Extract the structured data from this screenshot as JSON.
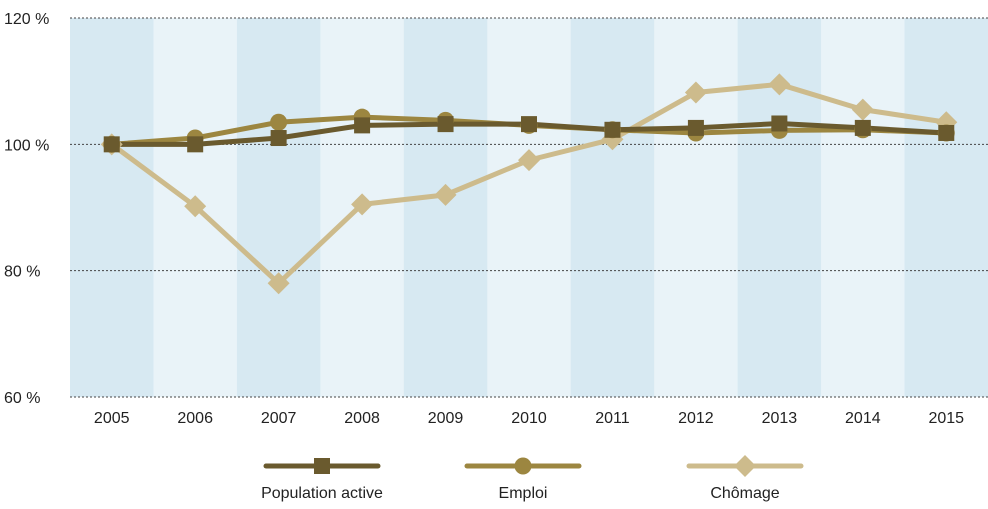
{
  "chart_data": {
    "type": "line",
    "title": "",
    "xlabel": "",
    "ylabel": "",
    "categories": [
      "2005",
      "2006",
      "2007",
      "2008",
      "2009",
      "2010",
      "2011",
      "2012",
      "2013",
      "2014",
      "2015"
    ],
    "ylim": [
      60,
      120
    ],
    "yticks": [
      60,
      80,
      100,
      120
    ],
    "ytick_labels": [
      "60 %",
      "80 %",
      "100 %",
      "120 %"
    ],
    "grid": "horizontal dotted",
    "legend_position": "bottom",
    "band_colors": [
      "#d7e9f2",
      "#e9f3f8"
    ],
    "series": [
      {
        "name": "Population active",
        "color": "#6a5a2e",
        "marker": "square",
        "values": [
          100,
          100,
          101,
          103,
          103.2,
          103.2,
          102.3,
          102.6,
          103.3,
          102.6,
          101.8
        ]
      },
      {
        "name": "Emploi",
        "color": "#9c8640",
        "marker": "circle",
        "values": [
          100,
          101,
          103.5,
          104.3,
          103.8,
          103,
          102.3,
          101.8,
          102.2,
          102.3,
          101.8
        ]
      },
      {
        "name": "Chômage",
        "color": "#cdbb8c",
        "marker": "diamond",
        "values": [
          100,
          90.2,
          78,
          90.5,
          92,
          97.5,
          100.8,
          108.2,
          109.5,
          105.5,
          103.5
        ]
      }
    ]
  }
}
